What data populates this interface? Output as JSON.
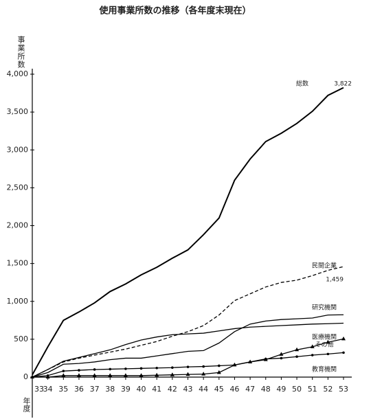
{
  "chart_data": {
    "type": "line",
    "title": "使用事業所数の推移（各年度末現在）",
    "y_label": "事業所数",
    "x_label": "年度",
    "x": [
      33,
      34,
      35,
      36,
      37,
      38,
      39,
      40,
      41,
      42,
      43,
      44,
      45,
      46,
      47,
      48,
      49,
      50,
      51,
      52,
      53
    ],
    "xlim": [
      33,
      53
    ],
    "xticks": [
      33,
      34,
      35,
      36,
      37,
      38,
      39,
      40,
      41,
      42,
      43,
      44,
      45,
      46,
      47,
      48,
      49,
      50,
      51,
      52,
      53
    ],
    "ylim": [
      0,
      4000
    ],
    "yticks": [
      0,
      500,
      {
        "value": 1000,
        "label": "1,000"
      },
      {
        "value": 1500,
        "label": "1,500"
      },
      {
        "value": 2000,
        "label": "2,000"
      },
      {
        "value": 2500,
        "label": "2,500"
      },
      {
        "value": 3000,
        "label": "3,000"
      },
      {
        "value": 3500,
        "label": "3,500"
      },
      {
        "value": 4000,
        "label": "4,000"
      }
    ],
    "series": [
      {
        "name": "総数",
        "color": "#000000",
        "line_style": "solid",
        "marker": "none",
        "values": [
          30,
          400,
          750,
          860,
          980,
          1130,
          1230,
          1350,
          1450,
          1570,
          1680,
          1880,
          2100,
          2600,
          2880,
          3110,
          3220,
          3350,
          3510,
          3720,
          3822
        ],
        "value_labels": [
          null,
          null,
          null,
          null,
          null,
          null,
          null,
          null,
          null,
          null,
          null,
          null,
          null,
          null,
          null,
          null,
          null,
          null,
          null,
          null,
          "3,822"
        ]
      },
      {
        "name": "民間企業",
        "color": "#000000",
        "line_style": "dashed",
        "marker": "none",
        "values": [
          0,
          100,
          200,
          250,
          290,
          330,
          370,
          420,
          470,
          540,
          600,
          680,
          820,
          1010,
          1100,
          1190,
          1250,
          1280,
          1340,
          1410,
          1459
        ],
        "value_labels": [
          null,
          null,
          null,
          null,
          null,
          null,
          null,
          null,
          null,
          null,
          null,
          null,
          null,
          null,
          null,
          null,
          null,
          null,
          null,
          null,
          "1,459"
        ]
      },
      {
        "name": "研究機関",
        "color": "#000000",
        "line_style": "solid",
        "marker": "none",
        "values": [
          0,
          60,
          170,
          180,
          200,
          230,
          250,
          250,
          280,
          310,
          340,
          350,
          450,
          600,
          700,
          740,
          760,
          770,
          780,
          820,
          823
        ]
      },
      {
        "name": "医療機関",
        "color": "#000000",
        "line_style": "solid",
        "marker": "none",
        "values": [
          0,
          100,
          210,
          260,
          310,
          360,
          430,
          490,
          530,
          560,
          570,
          580,
          610,
          640,
          660,
          670,
          680,
          690,
          700,
          705,
          712
        ]
      },
      {
        "name": "その他",
        "color": "#000000",
        "line_style": "solid",
        "marker": "triangle",
        "values": [
          0,
          0,
          20,
          20,
          20,
          20,
          20,
          20,
          25,
          30,
          35,
          40,
          60,
          160,
          200,
          230,
          300,
          360,
          400,
          460,
          505
        ]
      },
      {
        "name": "教育機関",
        "color": "#000000",
        "line_style": "solid",
        "marker": "dot",
        "values": [
          0,
          20,
          80,
          90,
          100,
          105,
          110,
          115,
          120,
          125,
          135,
          140,
          150,
          160,
          200,
          240,
          250,
          270,
          290,
          305,
          323
        ]
      }
    ]
  }
}
